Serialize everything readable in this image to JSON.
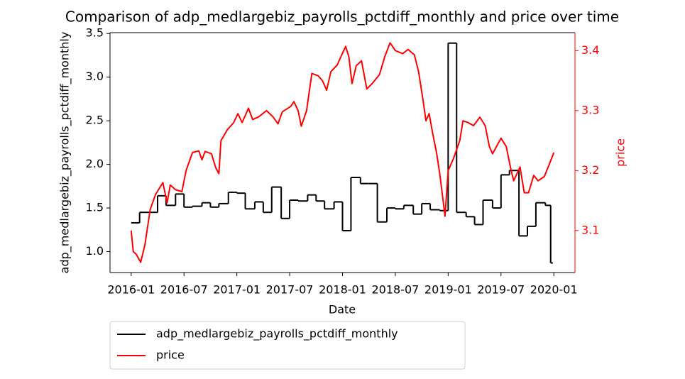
{
  "chart_data": {
    "type": "line",
    "title": "Comparison of adp_medlargebiz_payrolls_pctdiff_monthly and price over time",
    "x_label": "Date",
    "y_label": "adp_medlargebiz_payrolls_pctdiff_monthly",
    "y2_label": "price",
    "xlim": [
      2015.8,
      2020.2
    ],
    "xticks": [
      {
        "value": 2016.0,
        "label": "2016-01"
      },
      {
        "value": 2016.5,
        "label": "2016-07"
      },
      {
        "value": 2017.0,
        "label": "2017-01"
      },
      {
        "value": 2017.5,
        "label": "2017-07"
      },
      {
        "value": 2018.0,
        "label": "2018-01"
      },
      {
        "value": 2018.5,
        "label": "2018-07"
      },
      {
        "value": 2019.0,
        "label": "2019-01"
      },
      {
        "value": 2019.5,
        "label": "2019-07"
      },
      {
        "value": 2020.0,
        "label": "2020-01"
      }
    ],
    "ylim": [
      0.76,
      3.51
    ],
    "yticks": [
      {
        "value": 1.0,
        "label": "1.0"
      },
      1.5,
      {
        "value": 2.0,
        "label": "2.0"
      },
      2.5,
      {
        "value": 3.0,
        "label": "3.0"
      },
      3.5
    ],
    "y2lim": [
      3.03,
      3.43
    ],
    "y2ticks": [
      3.1,
      3.2,
      3.3,
      3.4
    ],
    "y2_color": "#ff0000",
    "legend": "lower center outside",
    "series": [
      {
        "name": "adp_medlargebiz_payrolls_pctdiff_monthly",
        "color": "#000000",
        "step": "post",
        "x": [
          2016.0,
          2016.08,
          2016.17,
          2016.25,
          2016.33,
          2016.42,
          2016.5,
          2016.58,
          2016.67,
          2016.75,
          2016.83,
          2016.92,
          2017.0,
          2017.08,
          2017.17,
          2017.25,
          2017.33,
          2017.42,
          2017.5,
          2017.58,
          2017.67,
          2017.75,
          2017.83,
          2017.92,
          2018.0,
          2018.08,
          2018.17,
          2018.25,
          2018.33,
          2018.42,
          2018.5,
          2018.58,
          2018.67,
          2018.75,
          2018.83,
          2018.92,
          2019.0,
          2019.08,
          2019.17,
          2019.25,
          2019.33,
          2019.42,
          2019.5,
          2019.58,
          2019.67,
          2019.75,
          2019.83,
          2019.92,
          2019.97,
          2019.99
        ],
        "values": [
          1.33,
          1.45,
          1.45,
          1.64,
          1.53,
          1.66,
          1.51,
          1.52,
          1.56,
          1.51,
          1.55,
          1.68,
          1.67,
          1.49,
          1.57,
          1.45,
          1.74,
          1.38,
          1.59,
          1.58,
          1.65,
          1.58,
          1.49,
          1.57,
          1.24,
          1.85,
          1.78,
          1.78,
          1.34,
          1.5,
          1.49,
          1.53,
          1.43,
          1.55,
          1.48,
          1.47,
          3.39,
          1.45,
          1.4,
          1.31,
          1.59,
          1.5,
          1.88,
          1.93,
          1.18,
          1.29,
          1.56,
          1.53,
          0.87,
          0.87
        ]
      },
      {
        "name": "price",
        "color": "#ff0000",
        "axis": "y2",
        "x": [
          2016.0,
          2016.02,
          2016.05,
          2016.09,
          2016.13,
          2016.18,
          2016.23,
          2016.3,
          2016.34,
          2016.37,
          2016.42,
          2016.48,
          2016.52,
          2016.58,
          2016.64,
          2016.67,
          2016.7,
          2016.76,
          2016.8,
          2016.83,
          2016.85,
          2016.91,
          2016.97,
          2017.01,
          2017.05,
          2017.11,
          2017.15,
          2017.21,
          2017.28,
          2017.34,
          2017.39,
          2017.43,
          2017.51,
          2017.54,
          2017.58,
          2017.61,
          2017.66,
          2017.71,
          2017.77,
          2017.81,
          2017.85,
          2017.89,
          2017.95,
          2017.99,
          2018.03,
          2018.06,
          2018.09,
          2018.13,
          2018.18,
          2018.23,
          2018.28,
          2018.35,
          2018.4,
          2018.45,
          2018.5,
          2018.57,
          2018.62,
          2018.68,
          2018.72,
          2018.76,
          2018.79,
          2018.82,
          2018.85,
          2018.89,
          2018.92,
          2018.95,
          2018.97,
          2019.0,
          2019.05,
          2019.11,
          2019.14,
          2019.19,
          2019.24,
          2019.3,
          2019.35,
          2019.39,
          2019.42,
          2019.5,
          2019.55,
          2019.59,
          2019.62,
          2019.68,
          2019.72,
          2019.76,
          2019.81,
          2019.85,
          2019.91,
          2019.96,
          2020.0
        ],
        "values": [
          3.1,
          3.065,
          3.06,
          3.047,
          3.076,
          3.135,
          3.16,
          3.18,
          3.146,
          3.176,
          3.168,
          3.165,
          3.2,
          3.23,
          3.233,
          3.218,
          3.232,
          3.228,
          3.205,
          3.195,
          3.25,
          3.268,
          3.28,
          3.295,
          3.28,
          3.304,
          3.285,
          3.29,
          3.3,
          3.29,
          3.278,
          3.298,
          3.307,
          3.315,
          3.3,
          3.274,
          3.3,
          3.362,
          3.358,
          3.35,
          3.334,
          3.365,
          3.376,
          3.392,
          3.407,
          3.39,
          3.345,
          3.375,
          3.383,
          3.336,
          3.345,
          3.36,
          3.39,
          3.413,
          3.4,
          3.395,
          3.402,
          3.393,
          3.365,
          3.32,
          3.283,
          3.295,
          3.265,
          3.23,
          3.195,
          3.153,
          3.124,
          3.2,
          3.22,
          3.25,
          3.283,
          3.28,
          3.275,
          3.289,
          3.275,
          3.24,
          3.228,
          3.254,
          3.24,
          3.205,
          3.183,
          3.206,
          3.163,
          3.163,
          3.192,
          3.183,
          3.19,
          3.212,
          3.23
        ]
      }
    ]
  }
}
